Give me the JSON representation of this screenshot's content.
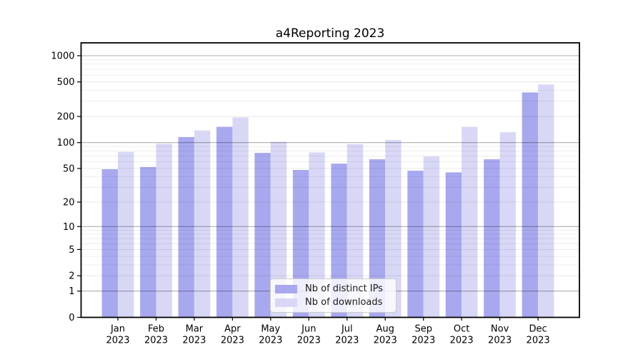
{
  "figure": {
    "title": "a4Reporting 2023"
  },
  "legend": {
    "items": [
      {
        "label": "Nb of distinct IPs",
        "color": "#a8a8ef"
      },
      {
        "label": "Nb of downloads",
        "color": "#d8d8f6"
      }
    ]
  },
  "chart_data": {
    "type": "bar",
    "title": "a4Reporting 2023",
    "categories": [
      "Jan 2023",
      "Feb 2023",
      "Mar 2023",
      "Apr 2023",
      "May 2023",
      "Jun 2023",
      "Jul 2023",
      "Aug 2023",
      "Sep 2023",
      "Oct 2023",
      "Nov 2023",
      "Dec 2023"
    ],
    "series": [
      {
        "name": "Nb of distinct IPs",
        "color": "#a8a8ef",
        "values": [
          49,
          52,
          116,
          152,
          76,
          48,
          57,
          64,
          47,
          45,
          64,
          379
        ]
      },
      {
        "name": "Nb of downloads",
        "color": "#d8d8f6",
        "values": [
          78,
          97,
          138,
          195,
          102,
          77,
          96,
          107,
          69,
          152,
          132,
          467
        ]
      }
    ],
    "xlabel": "",
    "ylabel": "",
    "yscale": "log1p",
    "yticks": [
      0,
      1,
      2,
      5,
      10,
      20,
      50,
      100,
      200,
      500,
      1000
    ],
    "ylim": [
      0,
      1400
    ],
    "grid": true,
    "legend_position": "lower center"
  }
}
